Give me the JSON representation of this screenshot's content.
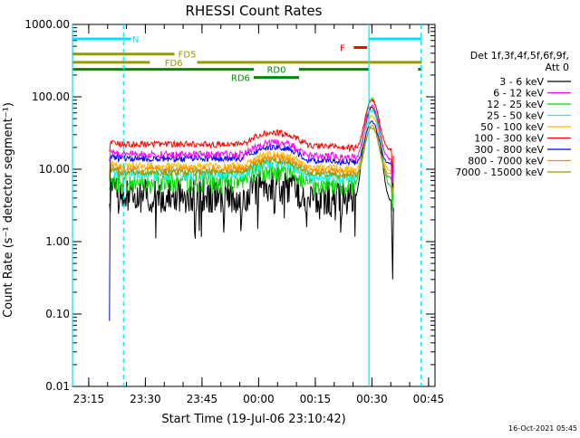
{
  "chart_data": {
    "type": "line",
    "title": "RHESSI Count Rates",
    "xlabel": "Start Time (19-Jul-06 23:10:42)",
    "ylabel": "Count Rate (s⁻¹ detector segment⁻¹)",
    "y_scale": "log",
    "ylim": [
      0.01,
      1000
    ],
    "xlim_minutes_after_23_10_42": [
      0,
      96
    ],
    "x_ticks": [
      {
        "label": "23:15",
        "minute": 4.3
      },
      {
        "label": "23:30",
        "minute": 19.3
      },
      {
        "label": "23:45",
        "minute": 34.3
      },
      {
        "label": "00:00",
        "minute": 49.3
      },
      {
        "label": "00:15",
        "minute": 64.3
      },
      {
        "label": "00:30",
        "minute": 79.3
      },
      {
        "label": "00:45",
        "minute": 94.3
      }
    ],
    "y_ticks": [
      "0.01",
      "0.10",
      "1.00",
      "10.00",
      "100.00",
      "1000.00"
    ],
    "legend": {
      "title_line1": "Det 1f,3f,4f,5f,6f,9f,",
      "title_line2": "Att 0",
      "placement": "right"
    },
    "series": [
      {
        "name": "3 - 6 keV",
        "color": "#000000",
        "base": 4.2,
        "peak": 70,
        "noise": 0.55
      },
      {
        "name": "6 - 12 keV",
        "color": "#ff00ff",
        "base": 16,
        "peak": 75,
        "noise": 0.12
      },
      {
        "name": "12 - 25 keV",
        "color": "#00dd00",
        "base": 6.5,
        "peak": 95,
        "noise": 0.35
      },
      {
        "name": "25 - 50 keV",
        "color": "#00ffff",
        "base": 8.5,
        "peak": 65,
        "noise": 0.18
      },
      {
        "name": "50 - 100 keV",
        "color": "#ffbb00",
        "base": 11,
        "peak": 55,
        "noise": 0.12
      },
      {
        "name": "100 - 300 keV",
        "color": "#ff0000",
        "base": 22,
        "peak": 90,
        "noise": 0.1
      },
      {
        "name": "300 - 800 keV",
        "color": "#0000ff",
        "base": 14,
        "peak": 45,
        "noise": 0.1
      },
      {
        "name": "800 - 7000 keV",
        "color": "#ff8800",
        "base": 10,
        "peak": 40,
        "noise": 0.1
      },
      {
        "name": "7000 - 15000 keV",
        "color": "#999900",
        "base": 9,
        "peak": 38,
        "noise": 0.1
      }
    ],
    "flags": [
      {
        "label": "N",
        "color": "#00e5ff"
      },
      {
        "label": "FD5",
        "color": "#999900"
      },
      {
        "label": "FD6",
        "color": "#999900"
      },
      {
        "label": "RD0",
        "color": "#008800"
      },
      {
        "label": "RD6",
        "color": "#008800"
      },
      {
        "label": "F",
        "color": "#ff0000"
      }
    ],
    "grid": false
  },
  "footer": {
    "timestamp": "16-Oct-2021 05:45"
  }
}
